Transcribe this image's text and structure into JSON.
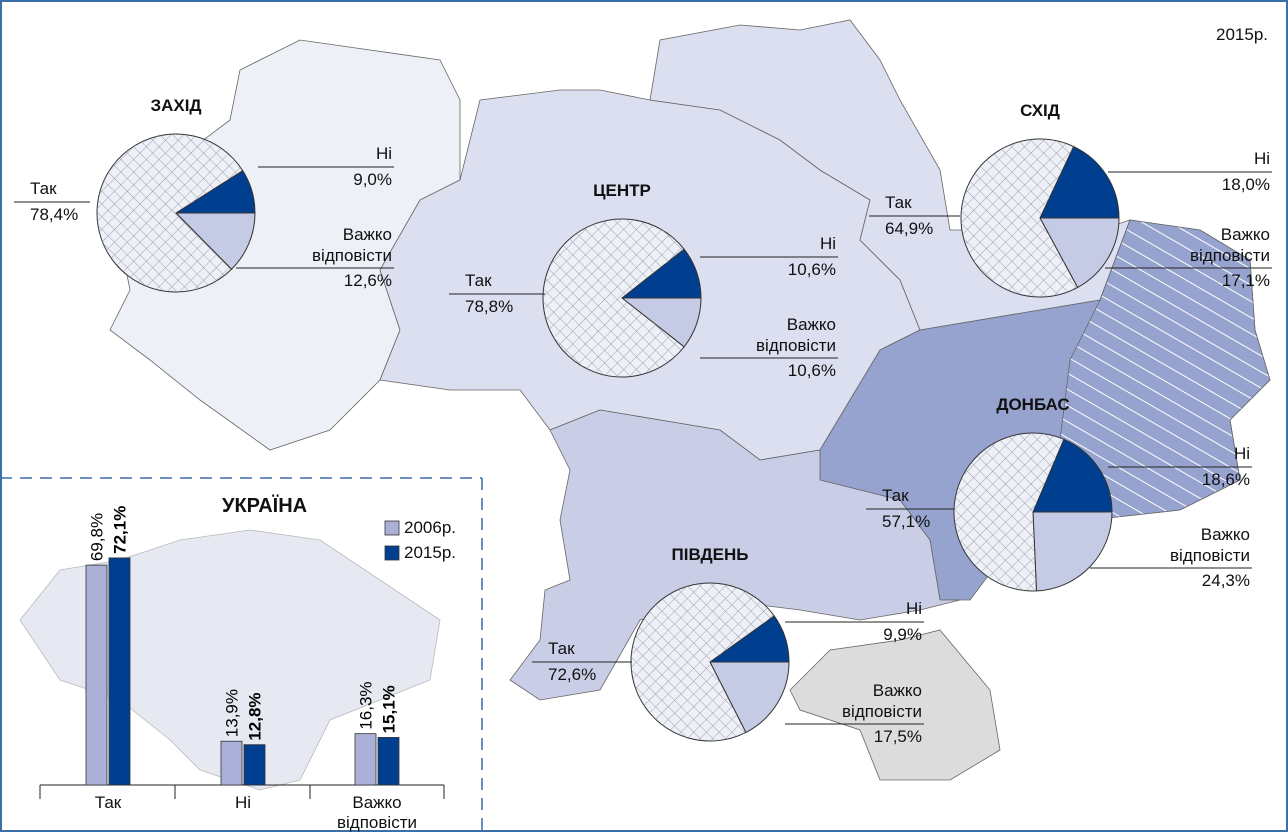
{
  "annotation": "2015р.",
  "chart_data": [
    {
      "type": "pie",
      "title": "ЗАХІД",
      "categories": [
        "Так",
        "Ні",
        "Важко відповісти"
      ],
      "values": [
        78.4,
        9.0,
        12.6
      ],
      "value_labels": [
        "78,4%",
        "9,0%",
        "12,6%"
      ],
      "colors": [
        "#eef0f8",
        "#003f8f",
        "#c6cbe5"
      ],
      "hatched": [
        true,
        false,
        false
      ]
    },
    {
      "type": "pie",
      "title": "ЦЕНТР",
      "categories": [
        "Так",
        "Ні",
        "Важко відповісти"
      ],
      "values": [
        78.8,
        10.6,
        10.6
      ],
      "value_labels": [
        "78,8%",
        "10,6%",
        "10,6%"
      ],
      "colors": [
        "#eef0f8",
        "#003f8f",
        "#c6cbe5"
      ],
      "hatched": [
        true,
        false,
        false
      ]
    },
    {
      "type": "pie",
      "title": "СХІД",
      "categories": [
        "Так",
        "Ні",
        "Важко відповісти"
      ],
      "values": [
        64.9,
        18.0,
        17.1
      ],
      "value_labels": [
        "64,9%",
        "18,0%",
        "17,1%"
      ],
      "colors": [
        "#eef0f8",
        "#003f8f",
        "#c6cbe5"
      ],
      "hatched": [
        true,
        false,
        false
      ]
    },
    {
      "type": "pie",
      "title": "ДОНБАС",
      "categories": [
        "Так",
        "Ні",
        "Важко відповісти"
      ],
      "values": [
        57.1,
        18.6,
        24.3
      ],
      "value_labels": [
        "57,1%",
        "18,6%",
        "24,3%"
      ],
      "colors": [
        "#eef0f8",
        "#003f8f",
        "#c6cbe5"
      ],
      "hatched": [
        true,
        false,
        false
      ]
    },
    {
      "type": "pie",
      "title": "ПІВДЕНЬ",
      "categories": [
        "Так",
        "Ні",
        "Важко відповісти"
      ],
      "values": [
        72.6,
        9.9,
        17.5
      ],
      "value_labels": [
        "72,6%",
        "9,9%",
        "17,5%"
      ],
      "colors": [
        "#eef0f8",
        "#003f8f",
        "#c6cbe5"
      ],
      "hatched": [
        true,
        false,
        false
      ]
    },
    {
      "type": "bar",
      "title": "УКРАЇНА",
      "categories": [
        "Так",
        "Ні",
        "Важко відповісти"
      ],
      "series": [
        {
          "name": "2006р.",
          "color": "#aab0d8",
          "values": [
            69.8,
            13.9,
            16.3
          ],
          "value_labels": [
            "69,8%",
            "13,9%",
            "16,3%"
          ]
        },
        {
          "name": "2015р.",
          "color": "#003f8f",
          "values": [
            72.1,
            12.8,
            15.1
          ],
          "value_labels": [
            "72,1%",
            "12,8%",
            "15,1%"
          ]
        }
      ]
    }
  ]
}
